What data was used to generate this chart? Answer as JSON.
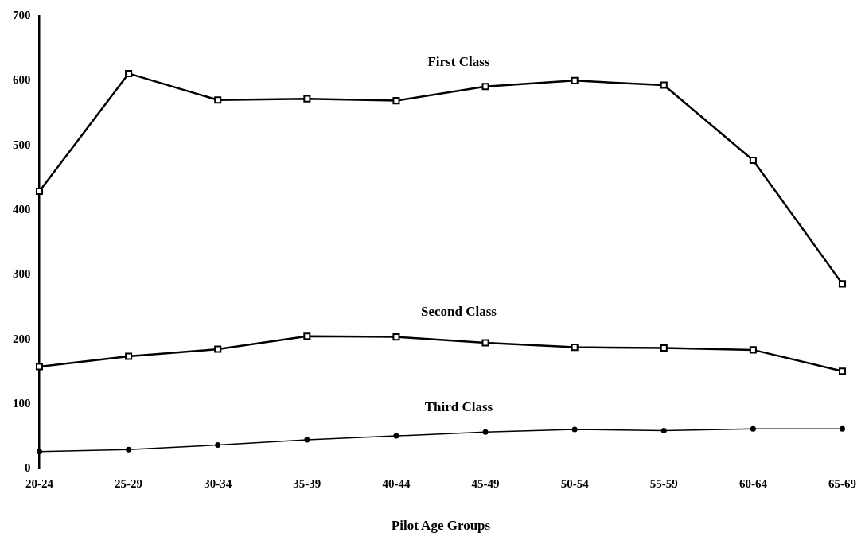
{
  "chart_data": {
    "type": "line",
    "xlabel": "Pilot Age Groups",
    "categories": [
      "20-24",
      "25-29",
      "30-34",
      "35-39",
      "40-44",
      "45-49",
      "50-54",
      "55-59",
      "60-64",
      "65-69"
    ],
    "ylim": [
      0,
      700
    ],
    "yticks": [
      0,
      100,
      200,
      300,
      400,
      500,
      600,
      700
    ],
    "grid": false,
    "legend": false,
    "series": [
      {
        "name": "First Class",
        "color": "#000000",
        "marker": "square",
        "values": [
          429,
          611,
          570,
          572,
          569,
          591,
          600,
          593,
          477,
          286
        ]
      },
      {
        "name": "Second Class",
        "color": "#000000",
        "marker": "square",
        "values": [
          158,
          174,
          185,
          205,
          204,
          195,
          188,
          187,
          184,
          151
        ]
      },
      {
        "name": "Third Class",
        "color": "#000000",
        "marker": "circle",
        "values": [
          27,
          30,
          37,
          45,
          51,
          57,
          61,
          59,
          62,
          62
        ]
      }
    ]
  }
}
